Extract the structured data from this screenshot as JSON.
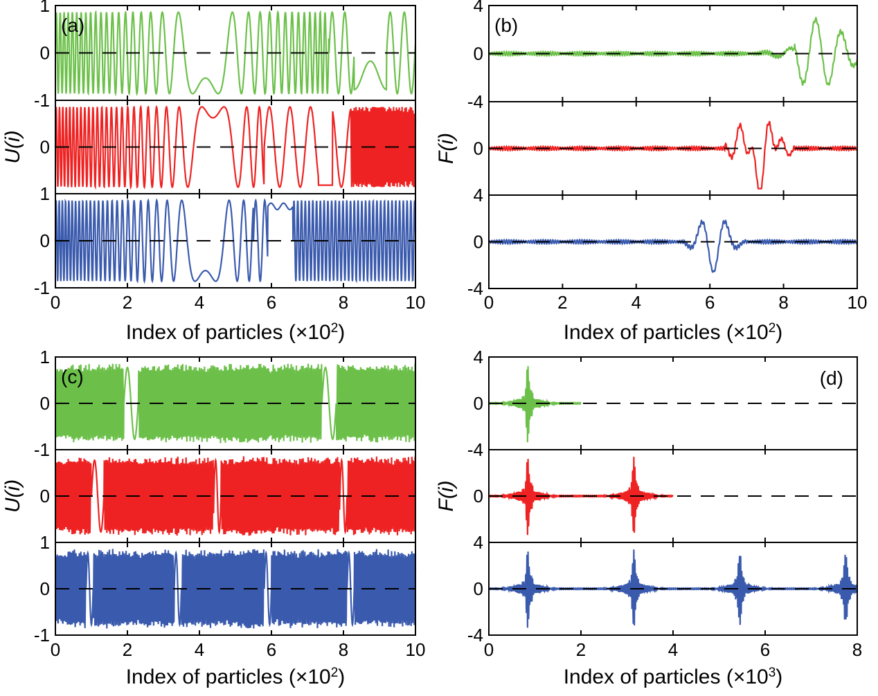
{
  "colors": {
    "green": "#6cc04a",
    "red": "#ee2222",
    "blue": "#3a5aad"
  },
  "chart_data": [
    {
      "id": "a",
      "type": "line",
      "panel_label": "(a)",
      "ylabel": "U(i)",
      "xlabel_text": "Index of particles (×10",
      "xlabel_exp": "2",
      "xlabel_close": ")",
      "xlim": [
        0,
        10
      ],
      "xticks": [
        "0",
        "2",
        "4",
        "6",
        "8",
        "10"
      ],
      "rows": [
        {
          "color": "green",
          "ylim": [
            -1,
            1
          ],
          "yticks": [
            "1",
            "0",
            "-1"
          ],
          "description": "dense oscillation; wavelength grows toward the right; slow oscillations after x≈7.5"
        },
        {
          "color": "red",
          "ylim": [
            -1,
            1
          ],
          "yticks": [
            "0"
          ],
          "description": "dense oscillation with slow oscillations around x≈6–8"
        },
        {
          "color": "blue",
          "ylim": [
            -1,
            1
          ],
          "yticks": [
            "1",
            "0",
            "-1"
          ],
          "description": "dense oscillation with slow oscillations around x≈5.5–6.7"
        }
      ]
    },
    {
      "id": "b",
      "type": "line",
      "panel_label": "(b)",
      "ylabel": "F(i)",
      "xlabel_text": "Index of particles (×10",
      "xlabel_exp": "2",
      "xlabel_close": ")",
      "xlim": [
        0,
        10
      ],
      "xticks": [
        "0",
        "2",
        "4",
        "6",
        "8",
        "10"
      ],
      "rows": [
        {
          "color": "green",
          "ylim": [
            -4,
            4
          ],
          "yticks": [
            "4",
            "0",
            "-4"
          ],
          "description": "small ripples; large oscillation around x≈8–10 (peak ≈3.4)"
        },
        {
          "color": "red",
          "ylim": [
            -4,
            4
          ],
          "yticks": [
            "0"
          ],
          "description": "small ripples; large oscillation around x≈6.6–8 (min ≈−3.6)"
        },
        {
          "color": "blue",
          "ylim": [
            -4,
            4
          ],
          "yticks": [
            "4",
            "0",
            "-4"
          ],
          "description": "small ripples; large oscillation around x≈5.5–6.8 (peak ≈3)"
        }
      ]
    },
    {
      "id": "c",
      "type": "line",
      "panel_label": "(c)",
      "ylabel": "U(i)",
      "xlabel_text": "Index of particles (×10",
      "xlabel_exp": "2",
      "xlabel_close": ")",
      "xlim": [
        0,
        10
      ],
      "xticks": [
        "0",
        "2",
        "4",
        "6",
        "8",
        "10"
      ],
      "rows": [
        {
          "color": "green",
          "ylim": [
            -1,
            1
          ],
          "yticks": [
            "1",
            "0",
            "-1"
          ],
          "description": "dense oscillation with gaps near x≈2 and x≈7.6"
        },
        {
          "color": "red",
          "ylim": [
            -1,
            1
          ],
          "yticks": [
            "0"
          ],
          "description": "dense oscillation with gaps near x≈1.2, 4.5, 8"
        },
        {
          "color": "blue",
          "ylim": [
            -1,
            1
          ],
          "yticks": [
            "1",
            "0",
            "-1"
          ],
          "description": "dense oscillation with gaps near x≈1, 3.4, 5.9, 8.2"
        }
      ]
    },
    {
      "id": "d",
      "type": "line",
      "panel_label": "(d)",
      "ylabel": "F(i)",
      "xlabel_text": "Index of particles (×10",
      "xlabel_exp": "3",
      "xlabel_close": ")",
      "xlim": [
        0,
        8
      ],
      "xticks": [
        "0",
        "2",
        "4",
        "6",
        "8"
      ],
      "rows": [
        {
          "color": "green",
          "ylim": [
            -4,
            4
          ],
          "yticks": [
            "4",
            "0",
            "-4"
          ],
          "peaks": [
            0.85
          ],
          "extent": 2.0,
          "description": "burst at x≈0.85, signal ends at x≈2"
        },
        {
          "color": "red",
          "ylim": [
            -4,
            4
          ],
          "yticks": [
            "0"
          ],
          "peaks": [
            0.85,
            3.15
          ],
          "extent": 4.0,
          "description": "bursts at x≈0.85 and 3.15, signal ends at x≈4"
        },
        {
          "color": "blue",
          "ylim": [
            -4,
            4
          ],
          "yticks": [
            "4",
            "0",
            "-4"
          ],
          "peaks": [
            0.85,
            3.15,
            5.45,
            7.75
          ],
          "extent": 8.0,
          "description": "bursts at x≈0.85, 3.15, 5.45, 7.75"
        }
      ]
    }
  ]
}
